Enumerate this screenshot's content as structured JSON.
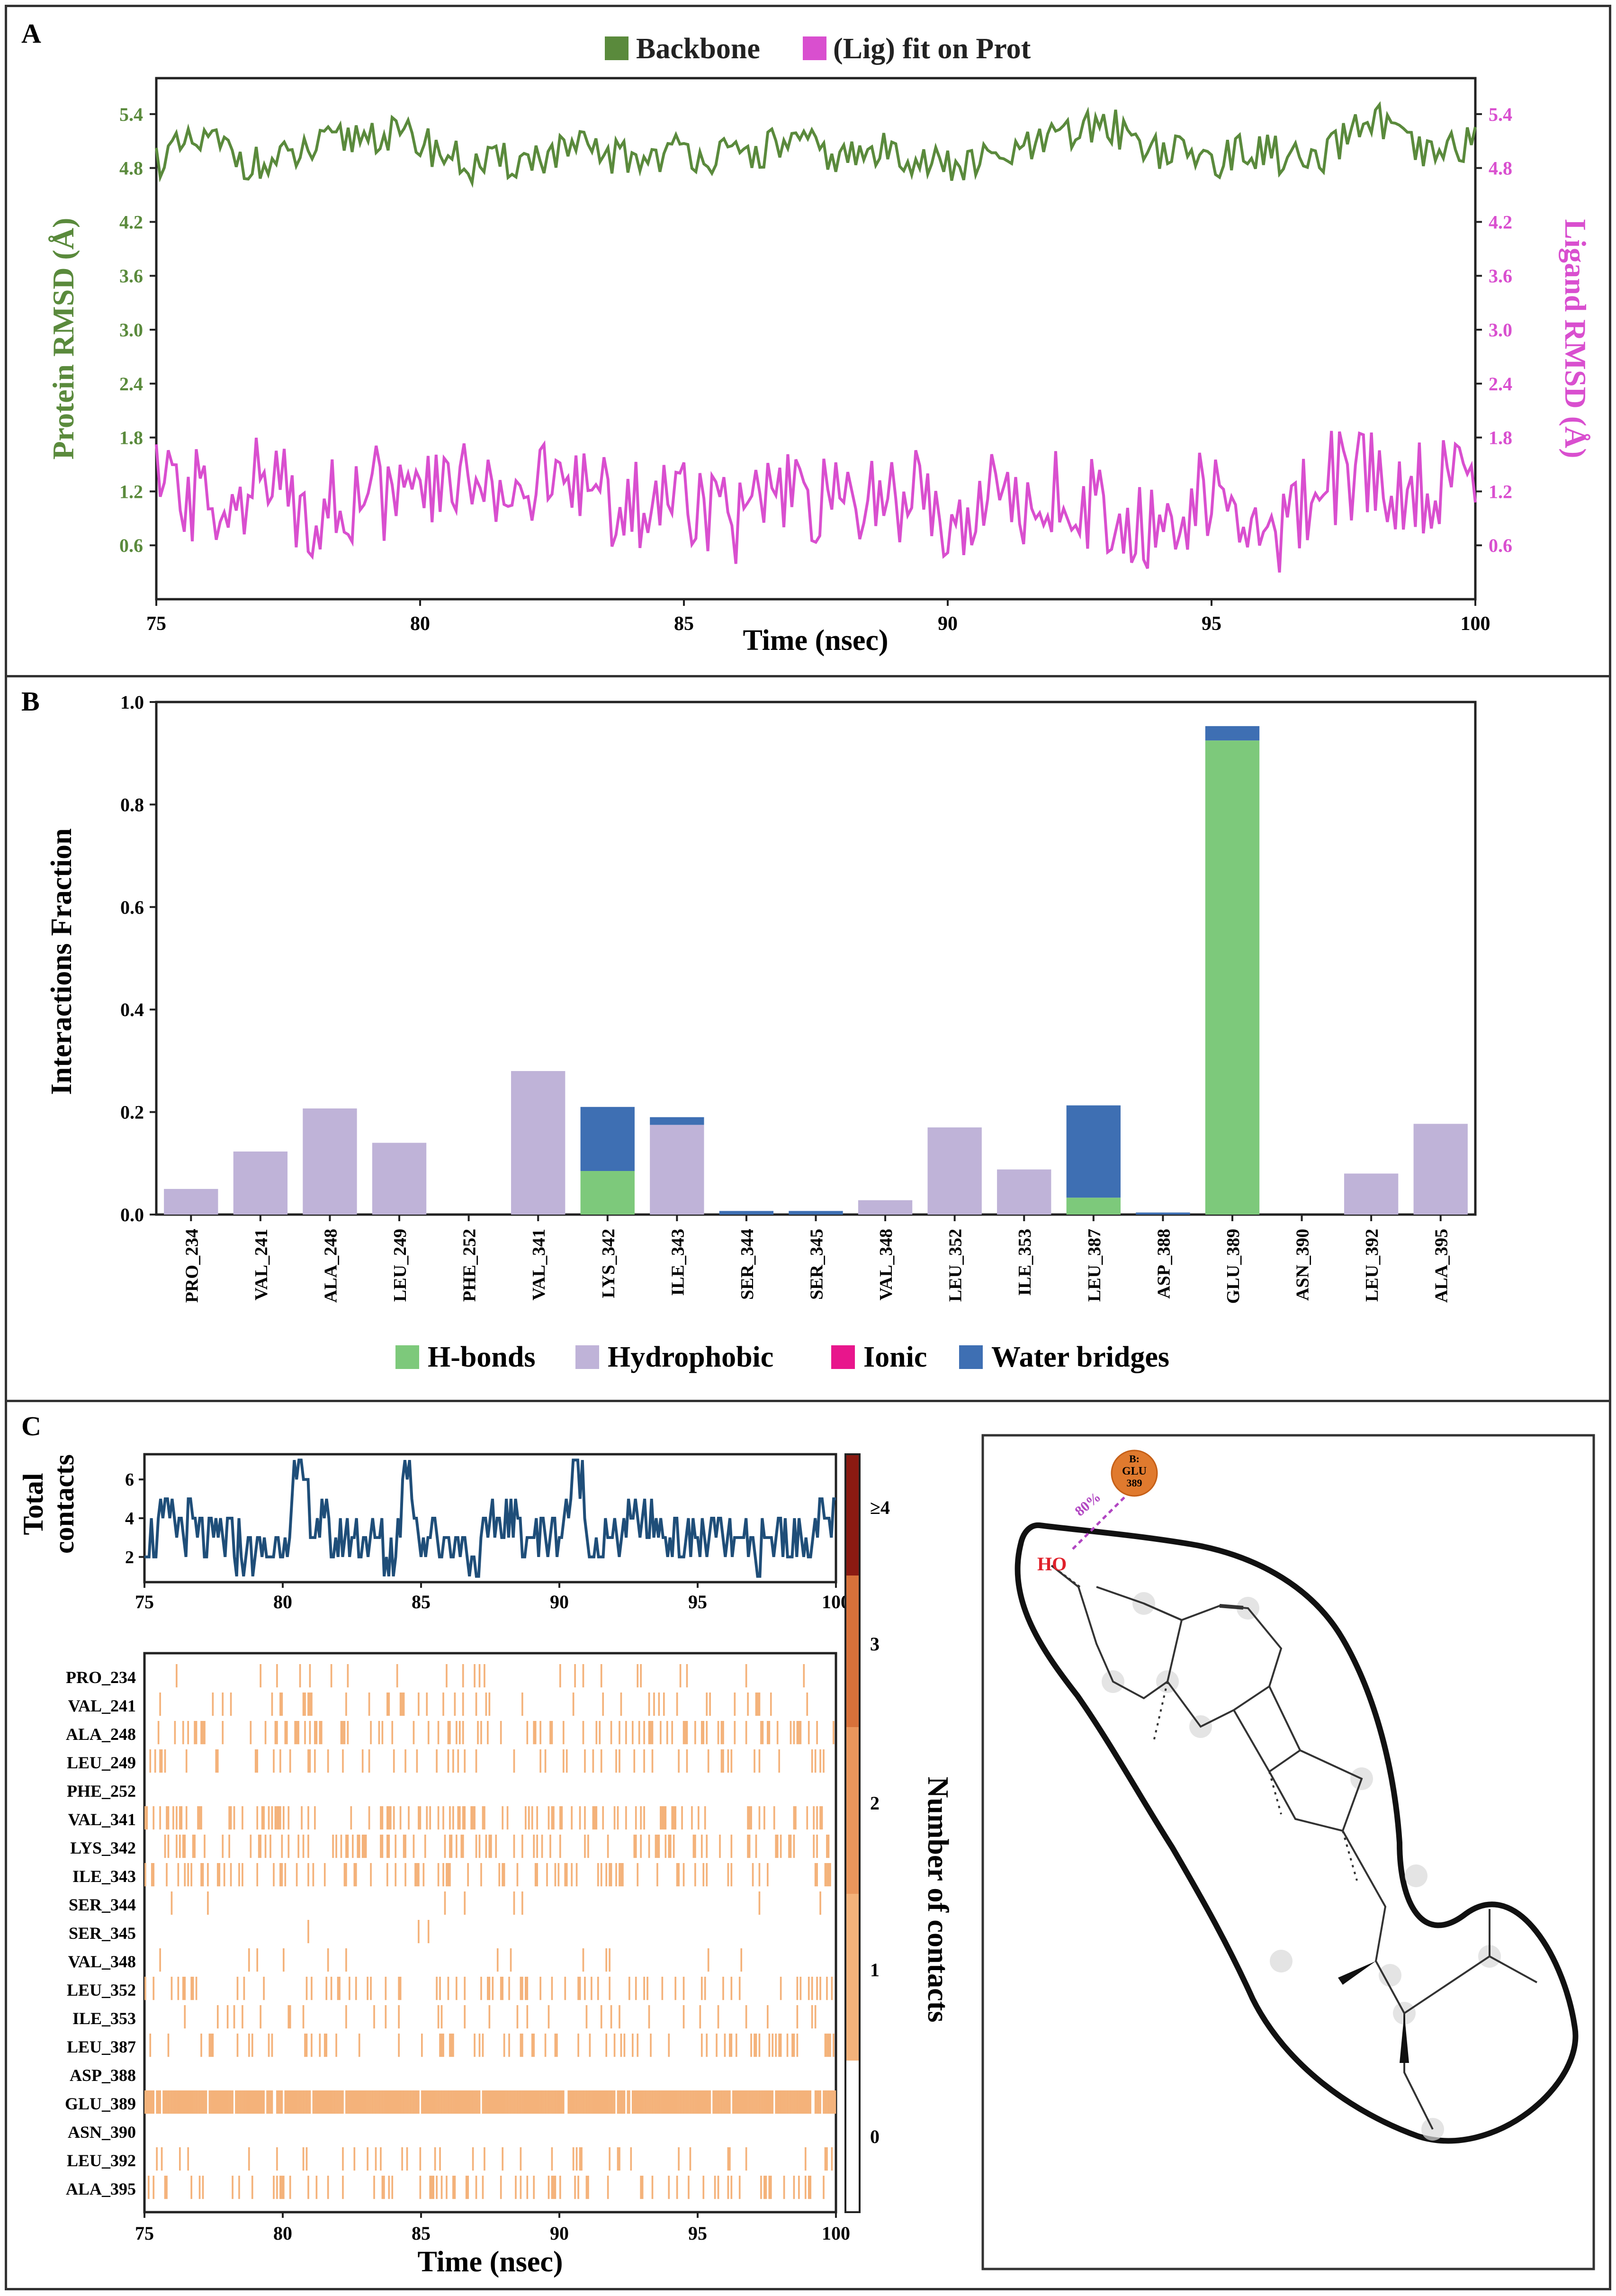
{
  "colors": {
    "backbone": "#5a8a3c",
    "ligand": "#d94fcf",
    "hbonds": "#7dc97b",
    "hydrophobic": "#bfb3d8",
    "ionic": "#e8168c",
    "water": "#3e6fb3",
    "contacts_line": "#1f4e79",
    "contacts_fill": "#f4b27a",
    "contacts_dark": "#d2713a"
  },
  "panel_a": {
    "letter": "A",
    "legend": [
      "Backbone",
      "(Lig) fit on Prot"
    ],
    "ylabel_left": "Protein RMSD (Å)",
    "ylabel_right": "Ligand RMSD (Å)",
    "xlabel": "Time (nsec)",
    "yticks": [
      "0.6",
      "1.2",
      "1.8",
      "2.4",
      "3.0",
      "3.6",
      "4.2",
      "4.8",
      "5.4"
    ],
    "xticks": [
      "75",
      "80",
      "85",
      "90",
      "95",
      "100"
    ]
  },
  "panel_b": {
    "letter": "B",
    "ylabel": "Interactions Fraction",
    "yticks": [
      "0.0",
      "0.2",
      "0.4",
      "0.6",
      "0.8",
      "1.0"
    ],
    "legend": [
      "H-bonds",
      "Hydrophobic",
      "Ionic",
      "Water bridges"
    ]
  },
  "panel_c": {
    "letter": "C",
    "top_ylabel_1": "Total",
    "top_ylabel_2": "contacts",
    "top_yticks": [
      "2",
      "4",
      "6"
    ],
    "xticks": [
      "75",
      "80",
      "85",
      "90",
      "95",
      "100"
    ],
    "xlabel": "Time (nsec)",
    "colorbar_label": "Number of contacts",
    "colorbar_ticks": [
      "0",
      "1",
      "2",
      "3",
      "≥4"
    ],
    "residues": [
      "PRO_234",
      "VAL_241",
      "ALA_248",
      "LEU_249",
      "PHE_252",
      "VAL_341",
      "LYS_342",
      "ILE_343",
      "SER_344",
      "SER_345",
      "VAL_348",
      "LEU_352",
      "ILE_353",
      "LEU_387",
      "ASP_388",
      "GLU_389",
      "ASN_390",
      "LEU_392",
      "ALA_395"
    ],
    "ligand_diagram": {
      "residue_badge": [
        "B:",
        "GLU",
        "389"
      ],
      "hbond_percent": "80%",
      "atom_label": "HO"
    }
  },
  "chart_data": [
    {
      "type": "line",
      "title": "",
      "xlabel": "Time (nsec)",
      "ylabel": "Protein RMSD (Å)",
      "y2label": "Ligand RMSD (Å)",
      "xlim": [
        75,
        100
      ],
      "ylim": [
        0,
        5.8
      ],
      "legend_position": "top-center",
      "series": [
        {
          "name": "Backbone",
          "x": [
            75,
            76,
            77,
            78,
            79,
            80,
            81,
            82,
            83,
            84,
            85,
            86,
            87,
            88,
            89,
            90,
            91,
            92,
            93,
            94,
            95,
            96,
            97,
            98,
            99,
            100
          ],
          "values": [
            4.9,
            5.1,
            4.8,
            5.0,
            5.2,
            5.1,
            4.8,
            4.9,
            5.0,
            4.9,
            5.0,
            4.9,
            5.1,
            4.9,
            5.0,
            4.8,
            4.9,
            5.1,
            5.3,
            5.0,
            4.9,
            5.0,
            4.8,
            5.4,
            4.9,
            5.1
          ]
        },
        {
          "name": "(Lig) fit on Prot",
          "x": [
            75,
            76,
            77,
            78,
            79,
            80,
            81,
            82,
            83,
            84,
            85,
            86,
            87,
            88,
            89,
            90,
            91,
            92,
            93,
            94,
            95,
            96,
            97,
            98,
            99,
            100
          ],
          "values": [
            1.2,
            1.1,
            1.3,
            1.0,
            1.2,
            1.1,
            1.4,
            1.2,
            1.3,
            1.0,
            1.2,
            0.9,
            1.1,
            1.0,
            1.2,
            1.0,
            1.1,
            1.2,
            1.0,
            0.8,
            1.2,
            0.6,
            1.3,
            1.4,
            1.2,
            1.5
          ]
        }
      ]
    },
    {
      "type": "bar",
      "title": "",
      "ylabel": "Interactions Fraction",
      "ylim": [
        0,
        1.0
      ],
      "stacked": true,
      "legend_position": "bottom",
      "categories": [
        "PRO_234",
        "VAL_241",
        "ALA_248",
        "LEU_249",
        "PHE_252",
        "VAL_341",
        "LYS_342",
        "ILE_343",
        "SER_344",
        "SER_345",
        "VAL_348",
        "LEU_352",
        "ILE_353",
        "LEU_387",
        "ASP_388",
        "GLU_389",
        "ASN_390",
        "LEU_392",
        "ALA_395"
      ],
      "series": [
        {
          "name": "H-bonds",
          "values": [
            0,
            0,
            0,
            0,
            0,
            0,
            0.085,
            0,
            0,
            0,
            0,
            0,
            0,
            0.033,
            0,
            0.925,
            0,
            0,
            0
          ]
        },
        {
          "name": "Hydrophobic",
          "values": [
            0.05,
            0.123,
            0.207,
            0.14,
            0,
            0.28,
            0,
            0.175,
            0,
            0,
            0.028,
            0.17,
            0.088,
            0,
            0,
            0,
            0,
            0.08,
            0.177
          ]
        },
        {
          "name": "Ionic",
          "values": [
            0,
            0,
            0,
            0,
            0,
            0,
            0,
            0,
            0,
            0,
            0,
            0,
            0,
            0,
            0,
            0,
            0,
            0,
            0
          ]
        },
        {
          "name": "Water bridges",
          "values": [
            0,
            0,
            0,
            0,
            0,
            0,
            0.125,
            0.015,
            0.007,
            0.007,
            0,
            0,
            0,
            0.18,
            0.004,
            0.028,
            0,
            0,
            0
          ]
        }
      ]
    },
    {
      "type": "line",
      "title": "",
      "xlabel": "",
      "ylabel": "Total contacts",
      "xlim": [
        75,
        100
      ],
      "ylim": [
        0.7,
        7.3
      ],
      "series": [
        {
          "name": "",
          "x": [
            75,
            76,
            77,
            78,
            79,
            80,
            80.7,
            81,
            82,
            83,
            84,
            84.5,
            85,
            86,
            87,
            88,
            89,
            90,
            90.8,
            91,
            92,
            93,
            94,
            95,
            96,
            97,
            98,
            99,
            100
          ],
          "values": [
            3,
            4,
            3,
            3,
            2,
            3,
            7,
            4,
            3,
            3,
            2,
            7,
            3,
            3,
            2,
            4,
            3,
            3,
            7,
            3,
            3,
            4,
            3,
            3,
            3,
            2,
            3,
            3,
            4
          ]
        }
      ]
    },
    {
      "type": "heatmap",
      "title": "",
      "xlabel": "Time (nsec)",
      "xlim": [
        75,
        100
      ],
      "categories": [
        "PRO_234",
        "VAL_241",
        "ALA_248",
        "LEU_249",
        "PHE_252",
        "VAL_341",
        "LYS_342",
        "ILE_343",
        "SER_344",
        "SER_345",
        "VAL_348",
        "LEU_352",
        "ILE_353",
        "LEU_387",
        "ASP_388",
        "GLU_389",
        "ASN_390",
        "LEU_392",
        "ALA_395"
      ],
      "occupancy": [
        0.05,
        0.12,
        0.21,
        0.14,
        0.0,
        0.28,
        0.21,
        0.19,
        0.01,
        0.01,
        0.03,
        0.17,
        0.09,
        0.21,
        0.0,
        0.95,
        0.0,
        0.08,
        0.18
      ],
      "colorbar_label": "Number of contacts",
      "colorbar_ticks": [
        "0",
        "1",
        "2",
        "3",
        "≥4"
      ]
    }
  ]
}
